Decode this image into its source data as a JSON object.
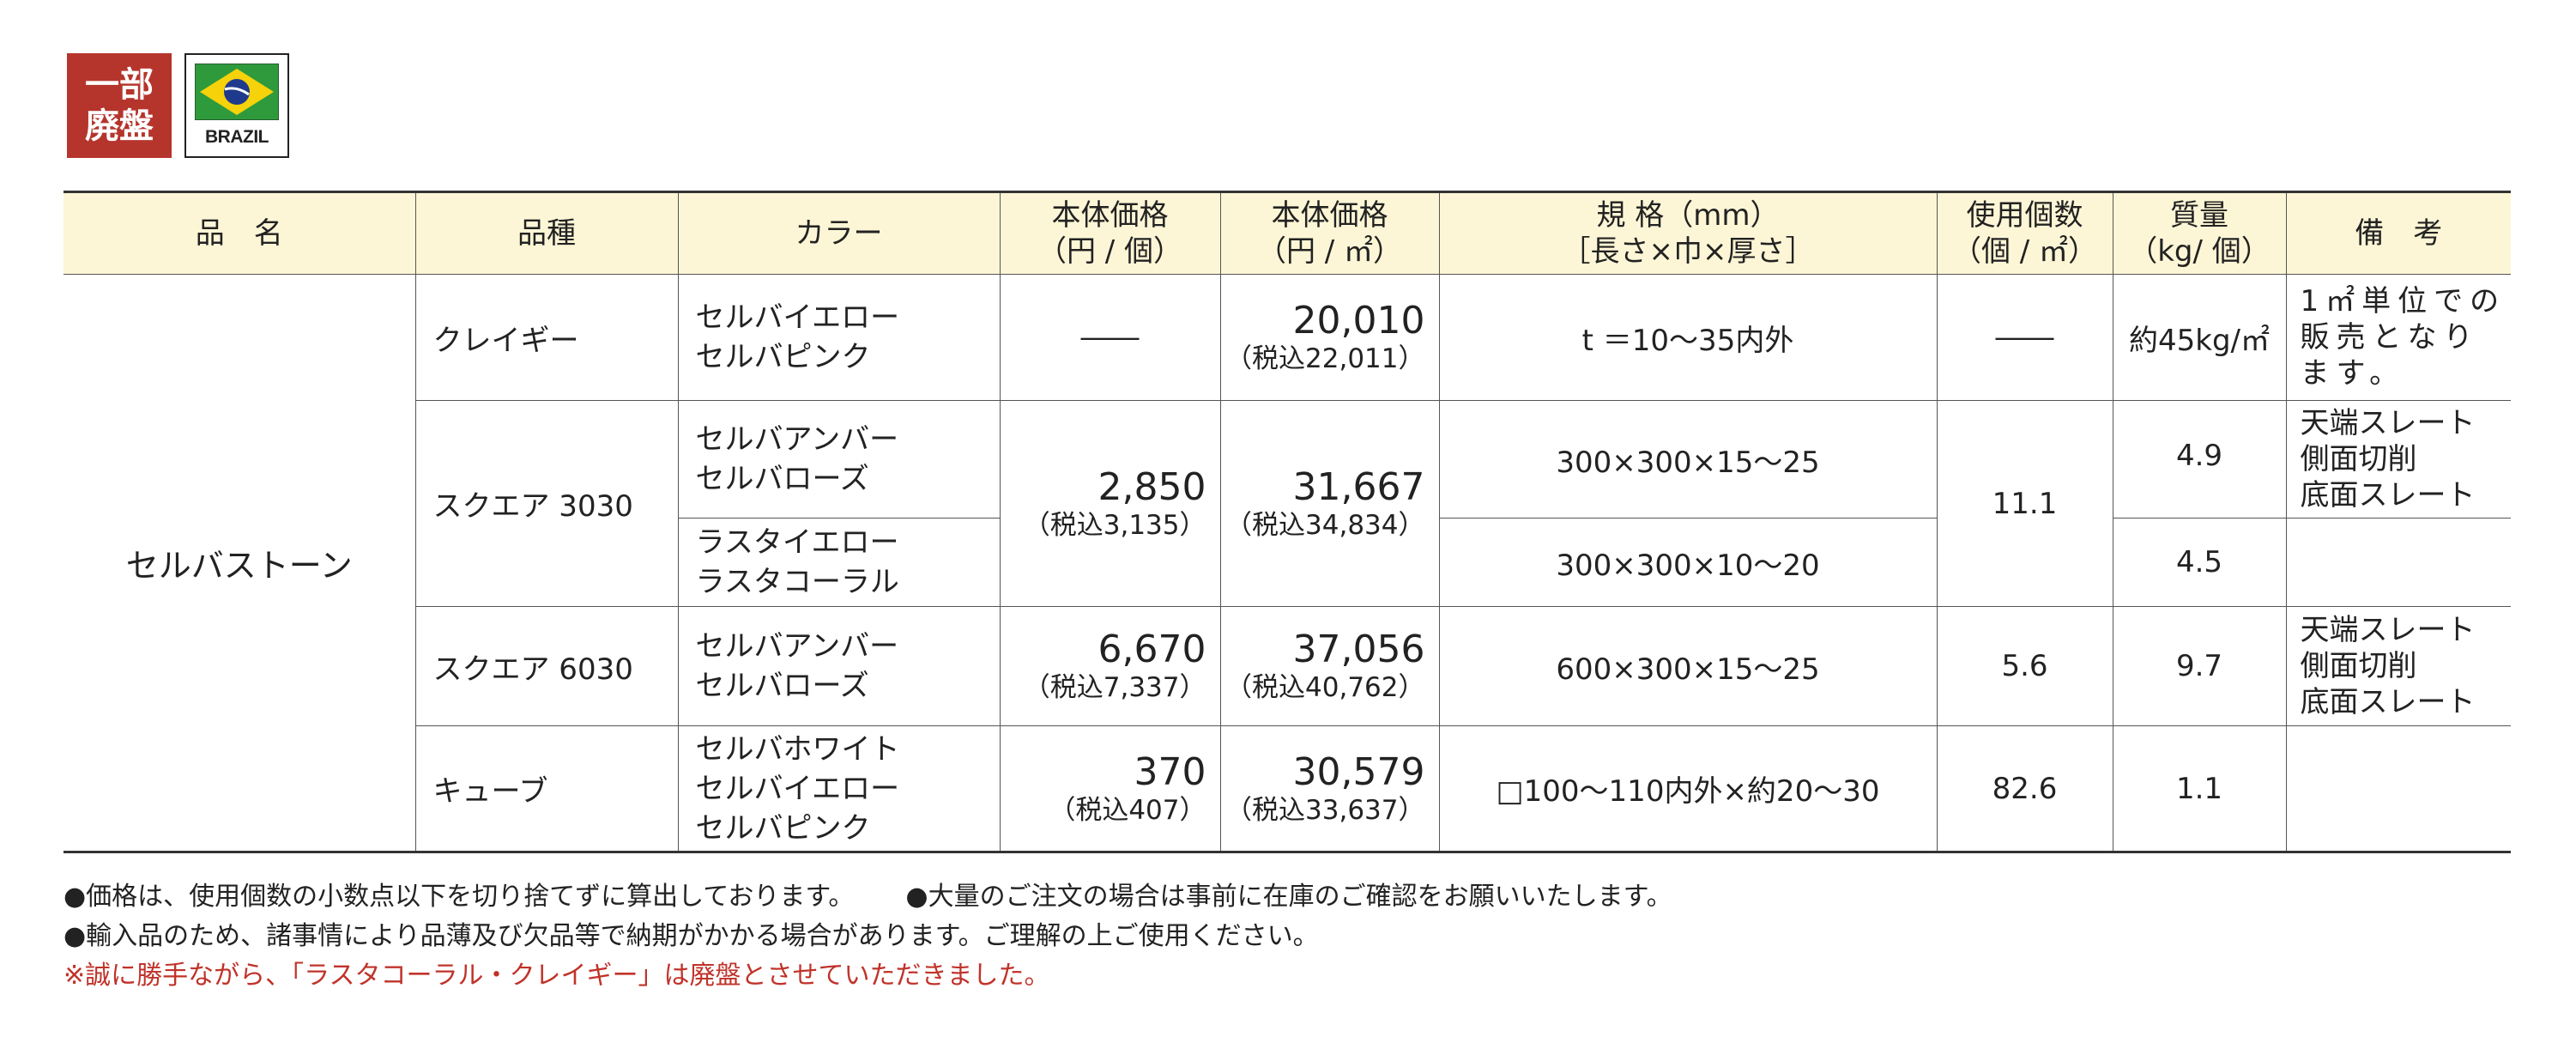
{
  "badges": {
    "status_line1": "一部",
    "status_line2": "廃盤",
    "country": "BRAZIL"
  },
  "table": {
    "headers": {
      "name": "品　名",
      "variety": "品種",
      "color": "カラー",
      "price_piece_1": "本体価格",
      "price_piece_2": "（円 / 個）",
      "price_sqm_1": "本体価格",
      "price_sqm_2": "（円 / ㎡）",
      "spec_1": "規 格（mm）",
      "spec_2": "［長さ×巾×厚さ］",
      "count_1": "使用個数",
      "count_2": "（個 / ㎡）",
      "weight_1": "質量",
      "weight_2": "（kg/ 個）",
      "remarks": "備　考"
    },
    "product": "セルバストーン",
    "rows": {
      "crazy": {
        "variety": "クレイギー",
        "color1": "セルバイエロー",
        "color2": "セルバピンク",
        "price_piece": "――",
        "price_sqm": "20,010",
        "price_sqm_tax": "（税込22,011）",
        "spec": "t ＝10〜35内外",
        "count": "――",
        "weight": "約45kg/㎡",
        "remarks": "1㎡単位での販売となります。"
      },
      "sq3030": {
        "variety": "スクエア 3030",
        "color1": "セルバアンバー",
        "color2": "セルバローズ",
        "color3": "ラスタイエロー",
        "color4": "ラスタコーラル",
        "price_piece": "2,850",
        "price_piece_tax": "（税込3,135）",
        "price_sqm": "31,667",
        "price_sqm_tax": "（税込34,834）",
        "spec1": "300×300×15〜25",
        "spec2": "300×300×10〜20",
        "count": "11.1",
        "weight1": "4.9",
        "weight2": "4.5",
        "remarks1": "天端スレート",
        "remarks2": "側面切削",
        "remarks3": "底面スレート"
      },
      "sq6030": {
        "variety": "スクエア 6030",
        "color1": "セルバアンバー",
        "color2": "セルバローズ",
        "price_piece": "6,670",
        "price_piece_tax": "（税込7,337）",
        "price_sqm": "37,056",
        "price_sqm_tax": "（税込40,762）",
        "spec": "600×300×15〜25",
        "count": "5.6",
        "weight": "9.7",
        "remarks1": "天端スレート",
        "remarks2": "側面切削",
        "remarks3": "底面スレート"
      },
      "cube": {
        "variety": "キューブ",
        "color1": "セルバホワイト",
        "color2": "セルバイエロー",
        "color3": "セルバピンク",
        "price_piece": "370",
        "price_piece_tax": "（税込407）",
        "price_sqm": "30,579",
        "price_sqm_tax": "（税込33,637）",
        "spec": "□100〜110内外×約20〜30",
        "count": "82.6",
        "weight": "1.1",
        "remarks": ""
      }
    }
  },
  "notes": {
    "note1": "●価格は、使用個数の小数点以下を切り捨てずに算出しております。",
    "note2": "●大量のご注文の場合は事前に在庫のご確認をお願いいたします。",
    "note3": "●輸入品のため、諸事情により品薄及び欠品等で納期がかかる場合があります。ご理解の上ご使用ください。",
    "note4": "※誠に勝手ながら、「ラスタコーラル・クレイギー」は廃盤とさせていただきました。"
  },
  "colors": {
    "badge_red": "#b5352c",
    "header_bg": "#fdf6d6",
    "note_red": "#c0332a",
    "flag_green": "#2f9a3c",
    "flag_yellow": "#f5d20a",
    "flag_blue": "#1f3a8c"
  }
}
